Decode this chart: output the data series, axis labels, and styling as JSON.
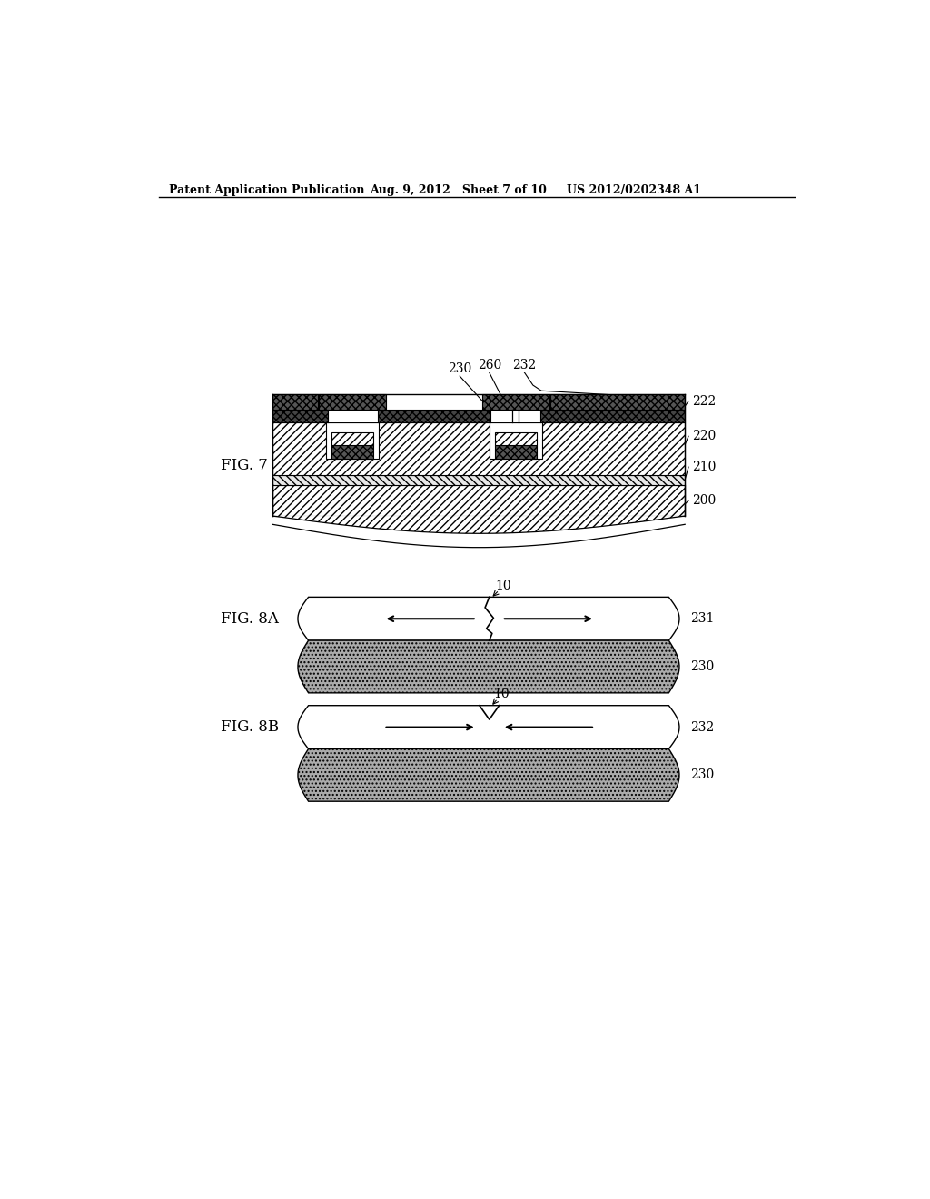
{
  "bg_color": "#ffffff",
  "header_left": "Patent Application Publication",
  "header_mid": "Aug. 9, 2012   Sheet 7 of 10",
  "header_right": "US 2012/0202348 A1",
  "fig7_label": "FIG. 7",
  "fig8a_label": "FIG. 8A",
  "fig8b_label": "FIG. 8B",
  "label_230": "230",
  "label_260": "260",
  "label_232": "232",
  "label_222": "222",
  "label_220": "220",
  "label_210": "210",
  "label_200": "200",
  "label_231": "231",
  "label_10": "10"
}
